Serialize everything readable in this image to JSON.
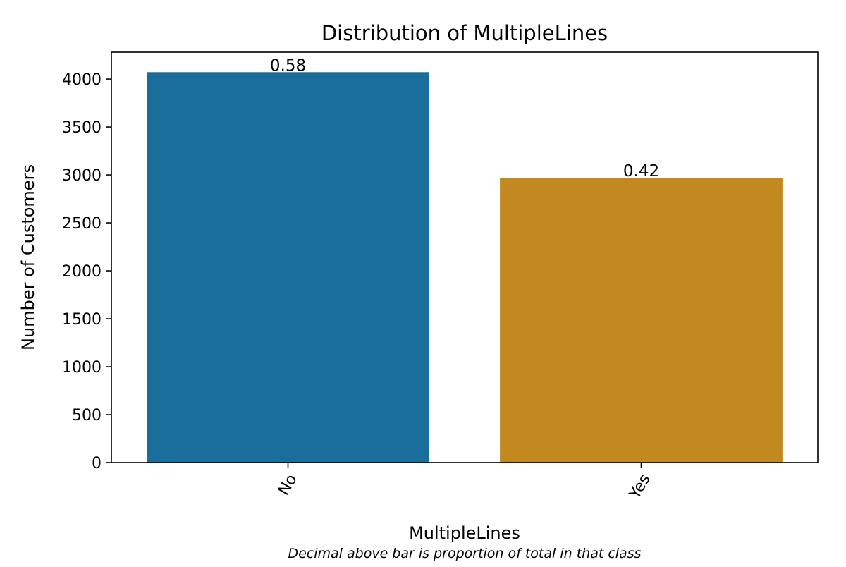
{
  "chart_data": {
    "type": "bar",
    "title": "Distribution of MultipleLines",
    "xlabel": "MultipleLines",
    "ylabel": "Number of Customers",
    "categories": [
      "No",
      "Yes"
    ],
    "values": [
      4072,
      2971
    ],
    "bar_labels": [
      "0.58",
      "0.42"
    ],
    "colors": [
      "#1a6e9c",
      "#c18920"
    ],
    "ylim": [
      0,
      4280
    ],
    "yticks": [
      0,
      500,
      1000,
      1500,
      2000,
      2500,
      3000,
      3500,
      4000
    ],
    "grid": false,
    "legend": "none",
    "footnote": "Decimal above bar is proportion of total in that class"
  }
}
